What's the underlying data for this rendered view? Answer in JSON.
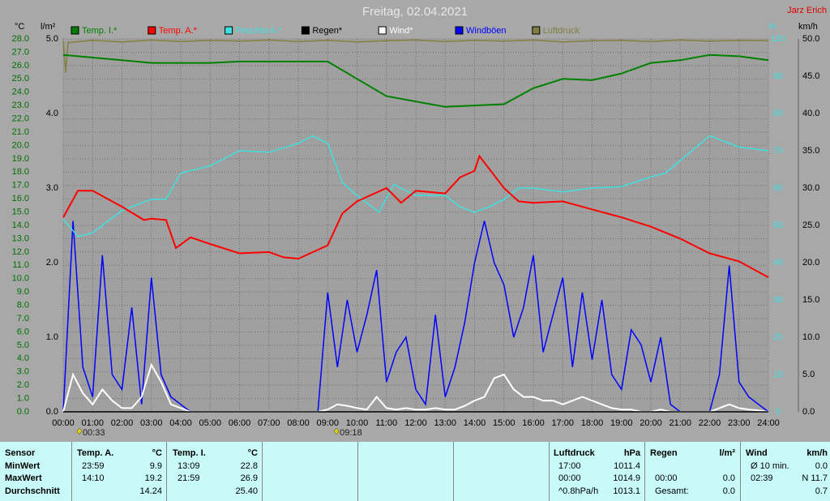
{
  "chart_data": {
    "type": "line",
    "title": "Freitag, 02.04.2021",
    "author": "Jarz Erich",
    "y_label": "°C",
    "y4_label": "l/m²",
    "y2_label": "%",
    "y3_label": "km/h",
    "grid": true,
    "xlim": [
      0,
      24
    ],
    "xticks": [
      {
        "value": 0,
        "label": "00:00"
      },
      {
        "value": 1,
        "label": "01:00"
      },
      {
        "value": 2,
        "label": "02:00"
      },
      {
        "value": 3,
        "label": "03:00"
      },
      {
        "value": 4,
        "label": "04:00"
      },
      {
        "value": 5,
        "label": "05:00"
      },
      {
        "value": 6,
        "label": "06:00"
      },
      {
        "value": 7,
        "label": "07:00"
      },
      {
        "value": 8,
        "label": "08:00"
      },
      {
        "value": 9,
        "label": "09:00"
      },
      {
        "value": 10,
        "label": "10:00"
      },
      {
        "value": 11,
        "label": "11:00"
      },
      {
        "value": 12,
        "label": "12:00"
      },
      {
        "value": 13,
        "label": "13:00"
      },
      {
        "value": 14,
        "label": "14:00"
      },
      {
        "value": 15,
        "label": "15:00"
      },
      {
        "value": 16,
        "label": "16:00"
      },
      {
        "value": 17,
        "label": "17:00"
      },
      {
        "value": 18,
        "label": "18:00"
      },
      {
        "value": 19,
        "label": "19:00"
      },
      {
        "value": 20,
        "label": "20:00"
      },
      {
        "value": 21,
        "label": "21:00"
      },
      {
        "value": 22,
        "label": "22:00"
      },
      {
        "value": 23,
        "label": "23:00"
      },
      {
        "value": 24,
        "label": "24:00"
      }
    ],
    "ylim": [
      0,
      28
    ],
    "yticks": [
      {
        "value": 0,
        "label": "0.0"
      },
      {
        "value": 1,
        "label": "1.0"
      },
      {
        "value": 2,
        "label": "2.0"
      },
      {
        "value": 3,
        "label": "3.0"
      },
      {
        "value": 4,
        "label": "4.0"
      },
      {
        "value": 5,
        "label": "5.0"
      },
      {
        "value": 6,
        "label": "6.0"
      },
      {
        "value": 7,
        "label": "7.0"
      },
      {
        "value": 8,
        "label": "8.0"
      },
      {
        "value": 9,
        "label": "9.0"
      },
      {
        "value": 10,
        "label": "10.0"
      },
      {
        "value": 11,
        "label": "11.0"
      },
      {
        "value": 12,
        "label": "12.0"
      },
      {
        "value": 13,
        "label": "13.0"
      },
      {
        "value": 14,
        "label": "14.0"
      },
      {
        "value": 15,
        "label": "15.0"
      },
      {
        "value": 16,
        "label": "16.0"
      },
      {
        "value": 17,
        "label": "17.0"
      },
      {
        "value": 18,
        "label": "18.0"
      },
      {
        "value": 19,
        "label": "19.0"
      },
      {
        "value": 20,
        "label": "20.0"
      },
      {
        "value": 21,
        "label": "21.0"
      },
      {
        "value": 22,
        "label": "22.0"
      },
      {
        "value": 23,
        "label": "23.0"
      },
      {
        "value": 24,
        "label": "24.0"
      },
      {
        "value": 25,
        "label": "25.0"
      },
      {
        "value": 26,
        "label": "26.0"
      },
      {
        "value": 27,
        "label": "27.0"
      },
      {
        "value": 28,
        "label": "28.0"
      }
    ],
    "y4lim": [
      0,
      5
    ],
    "y4ticks": [
      {
        "value": 0,
        "label": "0.0"
      },
      {
        "value": 1,
        "label": "1.0"
      },
      {
        "value": 2,
        "label": "2.0"
      },
      {
        "value": 3,
        "label": "3.0"
      },
      {
        "value": 4,
        "label": "4.0"
      },
      {
        "value": 5,
        "label": "5.0"
      }
    ],
    "y2lim": [
      0,
      100
    ],
    "y2ticks": [
      0,
      10,
      20,
      30,
      40,
      50,
      60,
      70,
      80,
      90,
      100
    ],
    "y3lim": [
      0,
      50
    ],
    "y3ticks": [
      {
        "value": 0,
        "label": "0.0"
      },
      {
        "value": 5,
        "label": "5.0"
      },
      {
        "value": 10,
        "label": "10.0"
      },
      {
        "value": 15,
        "label": "15.0"
      },
      {
        "value": 20,
        "label": "20.0"
      },
      {
        "value": 25,
        "label": "25.0"
      },
      {
        "value": 30,
        "label": "30.0"
      },
      {
        "value": 35,
        "label": "35.0"
      },
      {
        "value": 40,
        "label": "40.0"
      },
      {
        "value": 45,
        "label": "45.0"
      },
      {
        "value": 50,
        "label": "50.0"
      }
    ],
    "annotations": [
      "00:33",
      "09:18"
    ],
    "x": [
      "00:00",
      "00:20",
      "00:40",
      "01:00",
      "01:20",
      "01:40",
      "02:00",
      "02:20",
      "02:40",
      "03:00",
      "03:20",
      "03:40",
      "04:00",
      "04:20",
      "04:40",
      "05:00",
      "05:20",
      "05:40",
      "06:00",
      "06:20",
      "06:40",
      "07:00",
      "07:20",
      "07:40",
      "08:00",
      "08:20",
      "08:40",
      "09:00",
      "09:20",
      "09:40",
      "10:00",
      "10:20",
      "10:40",
      "11:00",
      "11:20",
      "11:40",
      "12:00",
      "12:20",
      "12:40",
      "13:00",
      "13:20",
      "13:40",
      "14:00",
      "14:20",
      "14:40",
      "15:00",
      "15:20",
      "15:40",
      "16:00",
      "16:20",
      "16:40",
      "17:00",
      "17:20",
      "17:40",
      "18:00",
      "18:20",
      "18:40",
      "19:00",
      "19:20",
      "19:40",
      "20:00",
      "20:20",
      "20:40",
      "21:00",
      "21:20",
      "21:40",
      "22:00",
      "22:20",
      "22:40",
      "23:00",
      "23:20",
      "23:40",
      "24:00"
    ],
    "series": [
      {
        "name": "Temp. I.*",
        "color": "#008000",
        "axis": "y",
        "x": [
          "00:00",
          "01:00",
          "02:00",
          "03:00",
          "04:00",
          "05:00",
          "06:00",
          "07:00",
          "08:00",
          "09:00",
          "10:00",
          "11:00",
          "12:00",
          "13:00",
          "14:00",
          "15:00",
          "16:00",
          "17:00",
          "18:00",
          "19:00",
          "20:00",
          "21:00",
          "22:00",
          "23:00",
          "24:00"
        ],
        "values": [
          26.8,
          26.6,
          26.4,
          26.2,
          26.2,
          26.2,
          26.3,
          26.3,
          26.3,
          26.3,
          25.0,
          23.7,
          23.3,
          22.9,
          23.0,
          23.1,
          24.3,
          25.0,
          24.9,
          25.4,
          26.2,
          26.4,
          26.8,
          26.7,
          26.4
        ]
      },
      {
        "name": "Temp. A.*",
        "color": "#ff0000",
        "axis": "y",
        "x": [
          "00:00",
          "00:30",
          "01:00",
          "02:00",
          "02:45",
          "03:00",
          "03:30",
          "03:50",
          "04:20",
          "05:00",
          "06:00",
          "07:00",
          "07:30",
          "08:00",
          "09:00",
          "09:30",
          "10:00",
          "11:00",
          "11:30",
          "12:00",
          "13:00",
          "13:30",
          "14:00",
          "14:10",
          "15:00",
          "15:30",
          "16:00",
          "17:00",
          "18:00",
          "19:00",
          "20:00",
          "21:00",
          "22:00",
          "23:00",
          "24:00"
        ],
        "values": [
          14.6,
          16.6,
          16.6,
          15.4,
          14.4,
          14.5,
          14.4,
          12.3,
          13.1,
          12.6,
          11.9,
          12.0,
          11.6,
          11.5,
          12.5,
          14.9,
          15.8,
          16.8,
          15.7,
          16.6,
          16.4,
          17.6,
          18.1,
          19.2,
          16.8,
          15.8,
          15.7,
          15.8,
          15.2,
          14.6,
          13.9,
          13.0,
          11.9,
          11.3,
          10.1
        ]
      },
      {
        "name": "Feuchte A.*",
        "color": "#40e0e0",
        "axis": "y2",
        "x": [
          "00:00",
          "00:30",
          "01:00",
          "02:00",
          "03:00",
          "03:30",
          "04:00",
          "05:00",
          "06:00",
          "07:00",
          "08:00",
          "08:30",
          "09:00",
          "09:30",
          "10:00",
          "10:45",
          "11:15",
          "12:00",
          "13:00",
          "13:30",
          "14:00",
          "14:30",
          "15:00",
          "15:30",
          "16:00",
          "17:00",
          "18:00",
          "19:00",
          "20:00",
          "20:30",
          "21:00",
          "22:00",
          "23:00",
          "24:00"
        ],
        "values": [
          51.7,
          47,
          48,
          54,
          57,
          57,
          64,
          66,
          70,
          69.6,
          72,
          74,
          72,
          61.5,
          58,
          53.5,
          61,
          58,
          58,
          55,
          53.5,
          55,
          57,
          60,
          60,
          59,
          60,
          60.4,
          63,
          64,
          67.4,
          74,
          71,
          70
        ]
      },
      {
        "name": "Regen*",
        "color": "#000000",
        "axis": "y4",
        "x": [
          "00:00",
          "24:00"
        ],
        "values": [
          0,
          0
        ]
      },
      {
        "name": "Wind*",
        "color": "#ffffff",
        "axis": "y3",
        "values": [
          0,
          5,
          2.5,
          1,
          3,
          1.5,
          0.5,
          0.5,
          2,
          6.3,
          4,
          1,
          0.5,
          0,
          0,
          0,
          0,
          0,
          0,
          0,
          0,
          0,
          0,
          0,
          0,
          0,
          0,
          0.3,
          1,
          0.8,
          0.5,
          0.3,
          2,
          0.5,
          0.3,
          0.5,
          0.3,
          0.3,
          0.5,
          0.3,
          0.3,
          0.8,
          1.5,
          2,
          4.5,
          5,
          3,
          2,
          2,
          1.5,
          1.5,
          1,
          1.5,
          2,
          1.5,
          1,
          0.5,
          0.3,
          0.3,
          0,
          0,
          0.3,
          0,
          0,
          0,
          0,
          0,
          0.5,
          1,
          0.5,
          0.3,
          0.2,
          0
        ]
      },
      {
        "name": "Windböen",
        "color": "#0000ff",
        "axis": "y3",
        "values": [
          0,
          25.6,
          6,
          2,
          21,
          5,
          3,
          14,
          1,
          18,
          5,
          2,
          1,
          0,
          0,
          0,
          0,
          0,
          0,
          0,
          0,
          0,
          0,
          0,
          0,
          0,
          0,
          16,
          6,
          15,
          8,
          13,
          19,
          4,
          8,
          10,
          3,
          1,
          13,
          2,
          6,
          12,
          20,
          25.6,
          20,
          17,
          10,
          14,
          21,
          8,
          13,
          18,
          6,
          16,
          7,
          15,
          5,
          3,
          11,
          9,
          4,
          10,
          1,
          0,
          0,
          0,
          0,
          5,
          19.6,
          4,
          2,
          1,
          0
        ]
      },
      {
        "name": "Luftdruck",
        "color": "#808040",
        "axis": "y2",
        "x": [
          "00:00",
          "00:05",
          "00:10",
          "01:00",
          "02:00",
          "03:00",
          "04:00",
          "05:00",
          "06:00",
          "07:00",
          "08:00",
          "09:00",
          "10:00",
          "11:00",
          "12:00",
          "13:00",
          "14:00",
          "15:00",
          "16:00",
          "17:00",
          "18:00",
          "19:00",
          "20:00",
          "21:00",
          "22:00",
          "23:00",
          "24:00"
        ],
        "values": [
          99.5,
          91,
          99,
          99.6,
          99.2,
          99.7,
          99.3,
          99.6,
          99.4,
          99.7,
          99.3,
          99.6,
          99.2,
          99.5,
          99.7,
          99.3,
          99.6,
          99.4,
          99.7,
          99.2,
          99.5,
          99.6,
          99.3,
          99.7,
          99.4,
          99.6,
          99.5
        ]
      }
    ]
  },
  "table": {
    "header": [
      [
        "Sensor"
      ],
      [
        "Temp. A.",
        "°C"
      ],
      [
        "Temp. I.",
        "°C"
      ],
      [
        "Luftdruck",
        "hPa"
      ],
      [
        "Regen",
        "l/m²"
      ],
      [
        "Wind",
        "km/h"
      ]
    ],
    "rows": [
      [
        "MinWert",
        [
          "23:59",
          "9.9"
        ],
        [
          "13:09",
          "22.8"
        ],
        [
          "17:00",
          "1011.4"
        ],
        [
          "",
          ""
        ],
        [
          "Ø 10 min.",
          "0.0"
        ]
      ],
      [
        "MaxWert",
        [
          "14:10",
          "19.2"
        ],
        [
          "21:59",
          "26.9"
        ],
        [
          "00:00",
          "1014.9"
        ],
        [
          "00:00",
          "0.0"
        ],
        [
          "02:39",
          "N 11.7"
        ]
      ],
      [
        "Durchschnitt",
        [
          "",
          "14.24"
        ],
        [
          "",
          "25.40"
        ],
        [
          "^0.8hPa/h",
          "1013.1"
        ],
        [
          "Gesamt:",
          "0.0"
        ],
        [
          "",
          "0.7"
        ]
      ]
    ]
  }
}
